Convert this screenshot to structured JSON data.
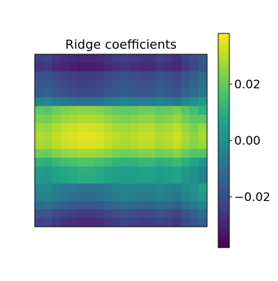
{
  "chart_data": {
    "type": "heatmap",
    "title": "Ridge coefficients",
    "xlabel": "",
    "ylabel": "",
    "grid": false,
    "colormap": "viridis",
    "rows": 20,
    "cols": 20,
    "zlim": [
      -0.038,
      0.038
    ],
    "colorbar": {
      "ticks": [
        0.02,
        0.0,
        -0.02
      ],
      "tick_labels": [
        "0.02",
        "0.00",
        "−0.02"
      ]
    },
    "row_profile": [
      -0.025,
      -0.027,
      -0.02,
      -0.018,
      -0.016,
      -0.005,
      0.02,
      0.024,
      0.028,
      0.03,
      0.029,
      0.022,
      0.012,
      0.005,
      0.004,
      -0.004,
      -0.006,
      -0.012,
      -0.02,
      -0.024
    ],
    "col_profile": [
      -0.001,
      -0.002,
      0.001,
      0.003,
      0.004,
      0.005,
      0.005,
      0.004,
      0.002,
      0.0,
      -0.001,
      0.0,
      0.001,
      0.001,
      -0.001,
      0.0,
      0.002,
      -0.002,
      -0.005,
      -0.009
    ],
    "right_edge_peak": [
      0,
      0,
      0,
      0,
      0,
      0,
      0,
      0.004,
      0.007,
      0.007,
      0.006,
      0.004,
      0,
      0,
      0,
      0,
      0,
      0,
      0,
      0
    ]
  },
  "colors": {
    "axes": "#000000",
    "background": "#ffffff"
  }
}
